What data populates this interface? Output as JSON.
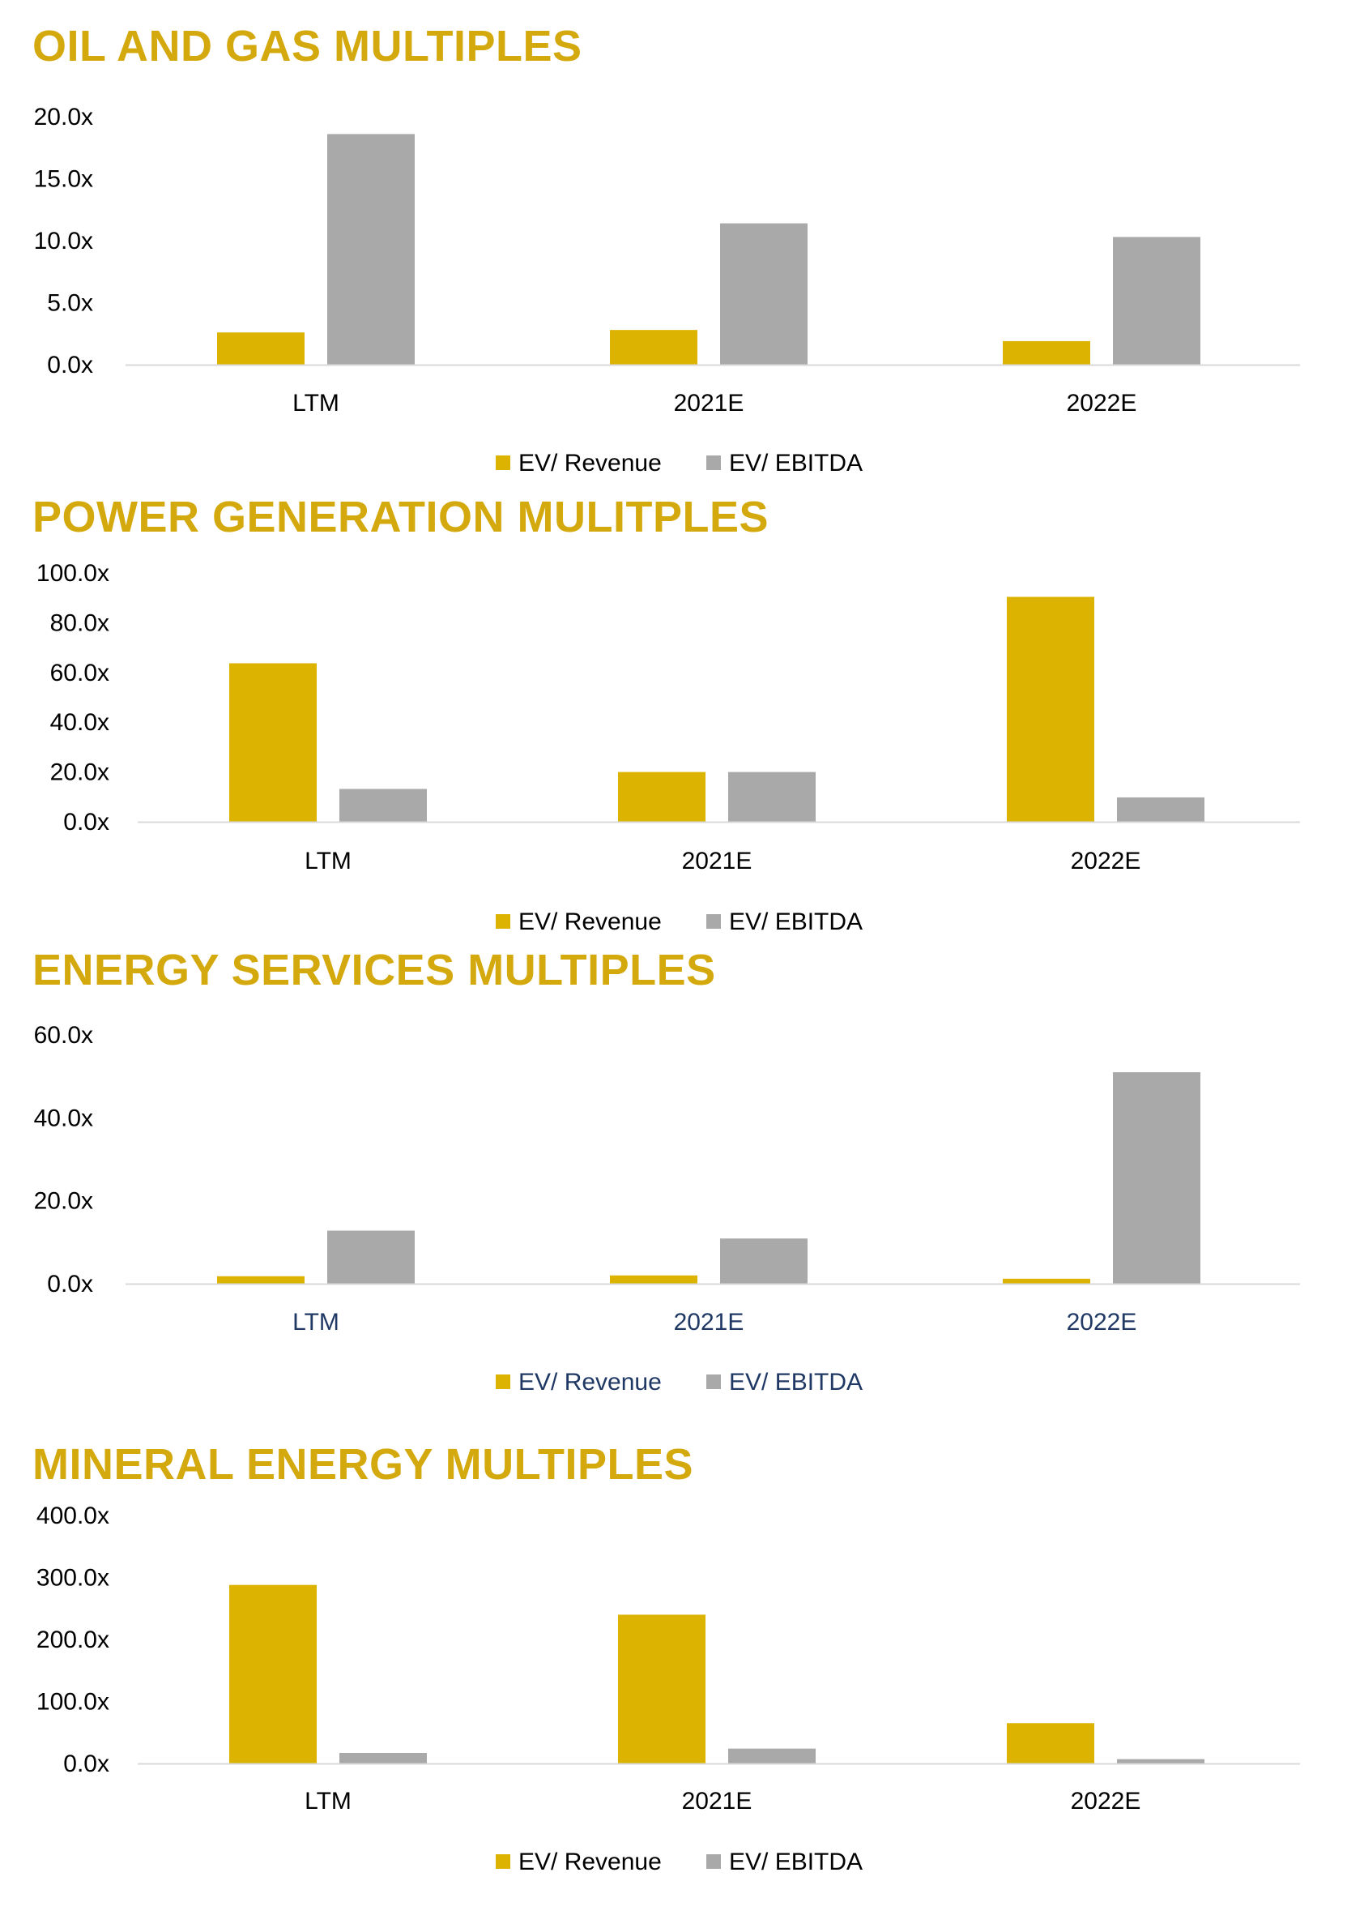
{
  "colors": {
    "revenue": "#DCB300",
    "ebitda": "#A9A9A9",
    "title": "#D4A90E",
    "axis_text": "#000000",
    "axis_text_alt": "#1F3864"
  },
  "chart_data": [
    {
      "type": "bar",
      "title": "OIL AND GAS MULTIPLES",
      "categories": [
        "LTM",
        "2021E",
        "2022E"
      ],
      "series": [
        {
          "name": "EV/ Revenue",
          "values": [
            2.6,
            2.8,
            1.9
          ]
        },
        {
          "name": "EV/ EBITDA",
          "values": [
            18.6,
            11.4,
            10.3
          ]
        }
      ],
      "ylim": [
        0,
        20
      ],
      "yticks": [
        "0.0x",
        "5.0x",
        "10.0x",
        "15.0x",
        "20.0x"
      ],
      "legend": "bottom",
      "grid": false
    },
    {
      "type": "bar",
      "title": "POWER GENERATION MULITPLES",
      "categories": [
        "LTM",
        "2021E",
        "2022E"
      ],
      "series": [
        {
          "name": "EV/ Revenue",
          "values": [
            63.7,
            20.0,
            90.4
          ]
        },
        {
          "name": "EV/ EBITDA",
          "values": [
            13.2,
            20.0,
            9.8
          ]
        }
      ],
      "ylim": [
        0,
        100
      ],
      "yticks": [
        "0.0x",
        "20.0x",
        "40.0x",
        "60.0x",
        "80.0x",
        "100.0x"
      ],
      "legend": "bottom",
      "grid": false
    },
    {
      "type": "bar",
      "title": "ENERGY SERVICES MULTIPLES",
      "categories": [
        "LTM",
        "2021E",
        "2022E"
      ],
      "series": [
        {
          "name": "EV/ Revenue",
          "values": [
            1.8,
            2.0,
            1.2
          ]
        },
        {
          "name": "EV/ EBITDA",
          "values": [
            12.8,
            10.9,
            51.0
          ]
        }
      ],
      "ylim": [
        0,
        60
      ],
      "yticks": [
        "0.0x",
        "20.0x",
        "40.0x",
        "60.0x"
      ],
      "legend": "bottom",
      "grid": false
    },
    {
      "type": "bar",
      "title": "MINERAL ENERGY MULTIPLES",
      "categories": [
        "LTM",
        "2021E",
        "2022E"
      ],
      "series": [
        {
          "name": "EV/ Revenue",
          "values": [
            288,
            240,
            65
          ]
        },
        {
          "name": "EV/ EBITDA",
          "values": [
            17,
            24,
            7
          ]
        }
      ],
      "ylim": [
        0,
        400
      ],
      "yticks": [
        "0.0x",
        "100.0x",
        "200.0x",
        "300.0x",
        "400.0x"
      ],
      "legend": "bottom",
      "grid": false
    }
  ]
}
